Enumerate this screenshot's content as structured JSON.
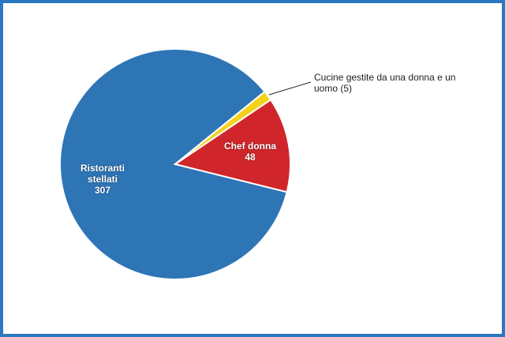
{
  "chart_data": {
    "type": "pie",
    "categories": [
      "Ristoranti stellati",
      "Chef donna",
      "Cucine gestite da una donna e un uomo"
    ],
    "values": [
      307,
      48,
      5
    ],
    "value_labels": [
      "307",
      "48",
      "(5)"
    ],
    "colors": [
      "#2e75b6",
      "#d0262b",
      "#f5d21c"
    ]
  }
}
